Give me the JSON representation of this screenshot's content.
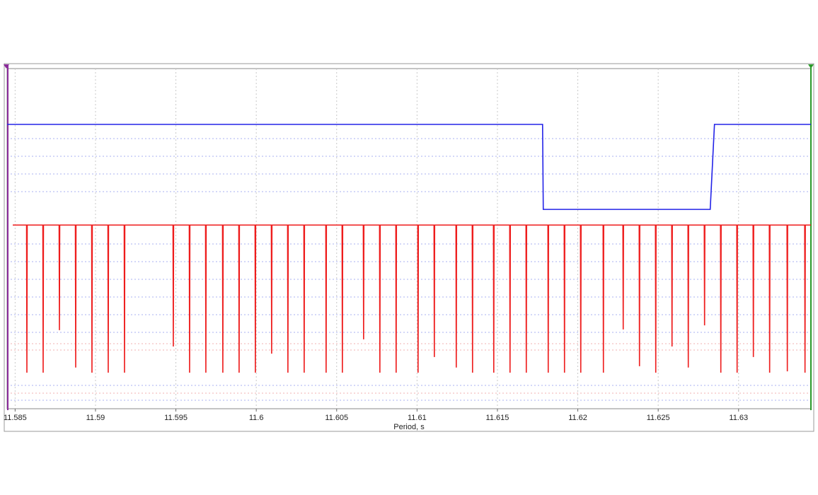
{
  "chart_data": {
    "type": "line",
    "x_label": "Period, s",
    "xlim": [
      11.5845,
      11.6345
    ],
    "ylim": [
      0,
      100
    ],
    "xticks": [
      11.585,
      11.59,
      11.595,
      11.6,
      11.605,
      11.61,
      11.615,
      11.62,
      11.625,
      11.63
    ],
    "grid": true,
    "series": [
      {
        "color": "#2323e8",
        "x": [
          11.5845,
          11.617808,
          11.617852,
          11.628236,
          11.6285,
          11.6345
        ],
        "values": [
          83.6,
          83.6,
          58.6,
          58.6,
          83.6,
          83.6
        ]
      },
      {
        "color": "#ee1c1c",
        "x": [
          11.584852,
          11.585712,
          11.585732,
          11.585752,
          11.586724,
          11.586744,
          11.586764,
          11.587736,
          11.587756,
          11.587776,
          11.588748,
          11.588768,
          11.588788,
          11.58976,
          11.58978,
          11.5898,
          11.590772,
          11.590792,
          11.590812,
          11.591784,
          11.591804,
          11.591824,
          11.59482,
          11.59484,
          11.59486,
          11.595832,
          11.595852,
          11.595872,
          11.596844,
          11.596864,
          11.596884,
          11.5979,
          11.59792,
          11.59794,
          11.598912,
          11.598932,
          11.598952,
          11.599924,
          11.599944,
          11.599964,
          11.600936,
          11.600956,
          11.600976,
          11.601948,
          11.601968,
          11.601988,
          11.60296,
          11.60298,
          11.603,
          11.604324,
          11.604344,
          11.604364,
          11.605336,
          11.605356,
          11.605376,
          11.606656,
          11.606676,
          11.606696,
          11.607668,
          11.607688,
          11.607708,
          11.60868,
          11.6087,
          11.60872,
          11.610044,
          11.610064,
          11.610084,
          11.611056,
          11.611076,
          11.611096,
          11.61242,
          11.61244,
          11.61246,
          11.613432,
          11.613452,
          11.613472,
          11.614752,
          11.614772,
          11.614792,
          11.615764,
          11.615784,
          11.615804,
          11.616776,
          11.616796,
          11.616816,
          11.61814,
          11.61816,
          11.61818,
          11.619152,
          11.619172,
          11.619192,
          11.620164,
          11.620184,
          11.620204,
          11.621572,
          11.621592,
          11.621612,
          11.622804,
          11.622824,
          11.622844,
          11.623816,
          11.623836,
          11.623856,
          11.624828,
          11.624848,
          11.624868,
          11.62584,
          11.62586,
          11.62588,
          11.626852,
          11.626872,
          11.626892,
          11.627864,
          11.627884,
          11.627904,
          11.628876,
          11.628896,
          11.628916,
          11.629888,
          11.629908,
          11.629928,
          11.6309,
          11.63092,
          11.63094,
          11.631912,
          11.631932,
          11.631952,
          11.633012,
          11.633032,
          11.633052,
          11.634112,
          11.634132,
          11.634152,
          11.6345
        ],
        "values": [
          54,
          54,
          10.6,
          54,
          54,
          10.6,
          54,
          54,
          23.1,
          54,
          54,
          12.1,
          54,
          54,
          10.6,
          54,
          54,
          10.6,
          54,
          54,
          10.6,
          54,
          54,
          18.3,
          54,
          54,
          10.6,
          54,
          54,
          10.6,
          54,
          54,
          10.6,
          54,
          54,
          10.6,
          54,
          54,
          10.6,
          54,
          54,
          16.2,
          54,
          54,
          10.6,
          54,
          54,
          10.6,
          54,
          54,
          10.6,
          54,
          54,
          10.6,
          54,
          54,
          20.4,
          54,
          54,
          10.6,
          54,
          54,
          10.6,
          54,
          54,
          10.6,
          54,
          54,
          15.2,
          54,
          54,
          12.1,
          54,
          54,
          10.6,
          54,
          54,
          10.6,
          54,
          54,
          10.6,
          54,
          54,
          10.6,
          54,
          54,
          10.6,
          54,
          54,
          10.6,
          54,
          54,
          10.6,
          54,
          54,
          10.6,
          54,
          54,
          23.3,
          54,
          54,
          12.5,
          54,
          54,
          10.6,
          54,
          54,
          18.3,
          54,
          54,
          12.1,
          54,
          54,
          24.5,
          54,
          54,
          10.6,
          54,
          54,
          10.6,
          54,
          54,
          15.2,
          54,
          54,
          10.6,
          54,
          54,
          11.0,
          54,
          54,
          10.6,
          54,
          54
        ]
      }
    ]
  }
}
